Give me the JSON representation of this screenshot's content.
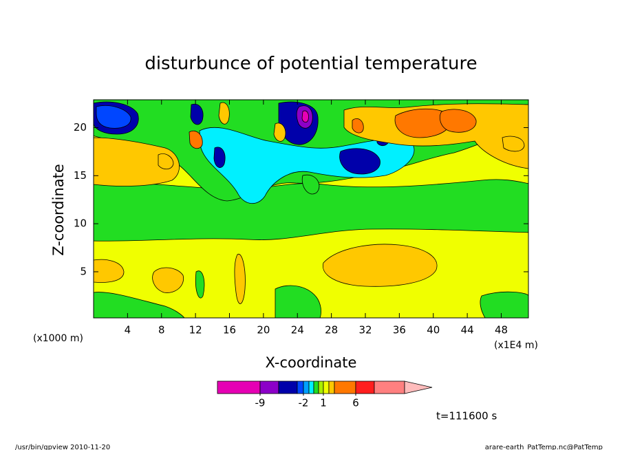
{
  "chart_data": {
    "type": "contour",
    "title": "disturbunce of potential temperature",
    "x_label": "X-coordinate",
    "y_label": "Z-coordinate",
    "x_unit_left": "(x1000 m)",
    "x_unit_right": "(x1E4 m)",
    "annotation": "t=111600 s",
    "xlim": [
      0,
      51.2
    ],
    "ylim": [
      0.2,
      22.9
    ],
    "xticks": [
      4,
      8,
      12,
      16,
      20,
      24,
      28,
      32,
      36,
      40,
      44,
      48
    ],
    "yticks": [
      5,
      10,
      15,
      20
    ],
    "colorbar": {
      "colors": [
        "#e600b4",
        "#8c00c8",
        "#0000aa",
        "#0046ff",
        "#00a0ff",
        "#00f0ff",
        "#22dd22",
        "#aaee00",
        "#f0ff00",
        "#ffc800",
        "#ff7800",
        "#ff1e1e",
        "#ff8080"
      ],
      "extend_color": "#ffbcbc",
      "levels": [
        null,
        -9,
        null,
        null,
        -2,
        null,
        null,
        null,
        1,
        null,
        null,
        6,
        null,
        null
      ]
    }
  },
  "footer": {
    "left": "/usr/bin/gpview  2010-11-20",
    "right": "arare-earth_PatTemp.nc@PatTemp"
  }
}
